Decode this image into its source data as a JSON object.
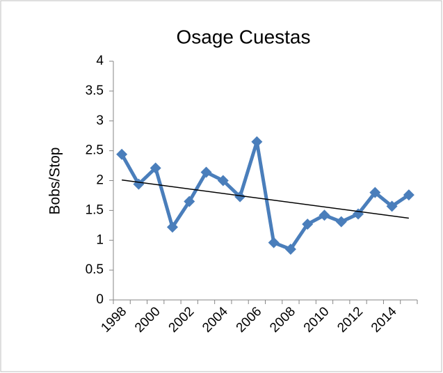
{
  "chart_data": {
    "type": "line",
    "title": "Osage Cuestas",
    "y_label": "Bobs/Stop",
    "categories": [
      "1998",
      null,
      "2000",
      null,
      "2002",
      null,
      "2004",
      null,
      "2006",
      null,
      "2008",
      null,
      "2010",
      null,
      "2012",
      null,
      "2014",
      null
    ],
    "series": [
      {
        "color": "#4a7ebb",
        "values": [
          2.44,
          1.94,
          2.21,
          1.22,
          1.65,
          2.14,
          2.0,
          1.73,
          2.65,
          0.96,
          0.85,
          1.27,
          1.42,
          1.31,
          1.44,
          1.8,
          1.57,
          1.76
        ]
      }
    ],
    "trendline": {
      "color": "#000000",
      "values": [
        2.01,
        1.37
      ]
    },
    "ylim": [
      0,
      4
    ],
    "yticks": [
      0,
      0.5,
      1,
      1.5,
      2,
      2.5,
      3,
      3.5,
      4
    ],
    "grid": false
  }
}
